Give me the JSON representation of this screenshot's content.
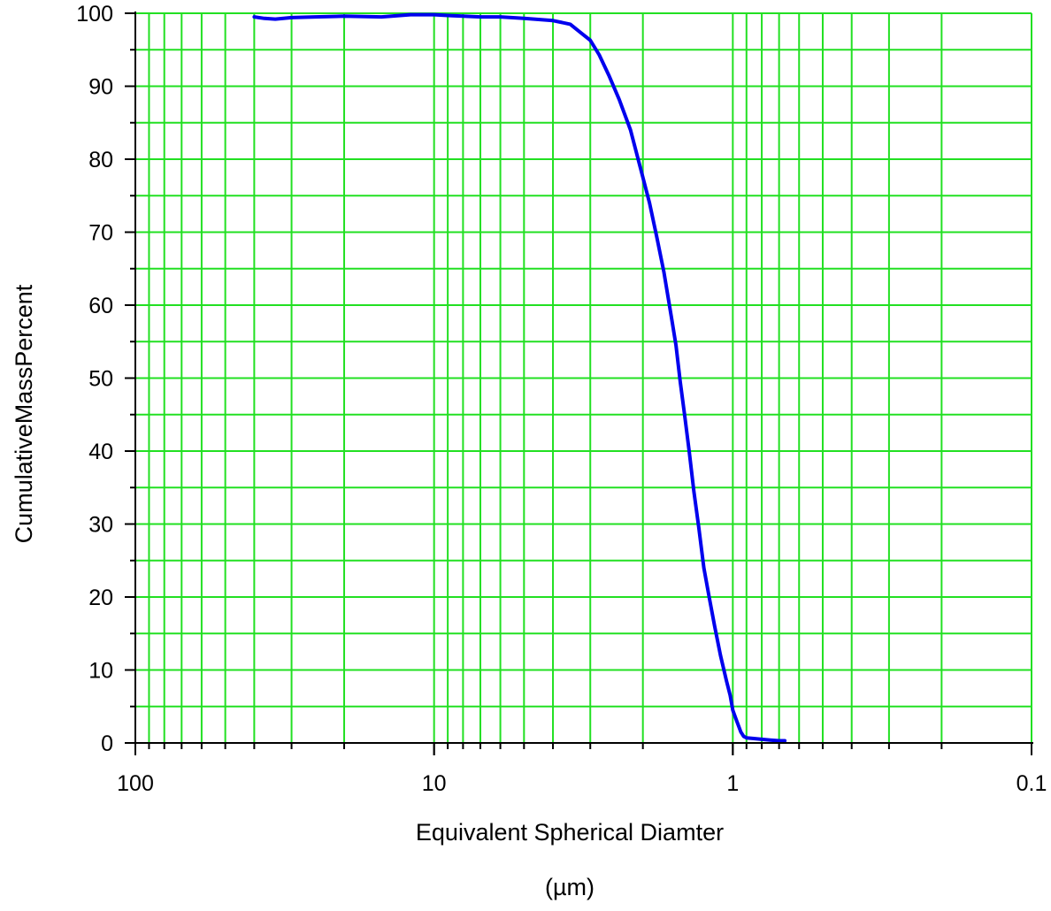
{
  "chart_data": {
    "type": "line",
    "xlabel": "Equivalent Spherical Diamter",
    "xlabel_unit": "(µm)",
    "ylabel": "CumulativeMassPercent",
    "x_scale": "log",
    "x_reversed": true,
    "xlim": [
      100,
      0.1
    ],
    "ylim": [
      0,
      100
    ],
    "grid": true,
    "x_tick_labels": [
      {
        "value": 100,
        "label": "100"
      },
      {
        "value": 10,
        "label": "10"
      },
      {
        "value": 1,
        "label": "1"
      },
      {
        "value": 0.1,
        "label": "0.1"
      }
    ],
    "y_tick_labels": [
      {
        "value": 0,
        "label": "0"
      },
      {
        "value": 10,
        "label": "10"
      },
      {
        "value": 20,
        "label": "20"
      },
      {
        "value": 30,
        "label": "30"
      },
      {
        "value": 40,
        "label": "40"
      },
      {
        "value": 50,
        "label": "50"
      },
      {
        "value": 60,
        "label": "60"
      },
      {
        "value": 70,
        "label": "70"
      },
      {
        "value": 80,
        "label": "80"
      },
      {
        "value": 90,
        "label": "90"
      },
      {
        "value": 100,
        "label": "100"
      }
    ],
    "x_gridlines": [
      90,
      80,
      70,
      60,
      50,
      40,
      30,
      20,
      10,
      9,
      8,
      7,
      6,
      5,
      4,
      3,
      2,
      1,
      0.9,
      0.8,
      0.7,
      0.6,
      0.5,
      0.4,
      0.3,
      0.2,
      0.1
    ],
    "y_gridlines": [
      5,
      10,
      15,
      20,
      25,
      30,
      35,
      40,
      45,
      50,
      55,
      60,
      65,
      70,
      75,
      80,
      85,
      90,
      95,
      100
    ],
    "series": [
      {
        "color": "#0000ee",
        "x": [
          40,
          37,
          34,
          30,
          25,
          20,
          15,
          12,
          10,
          9,
          8,
          7,
          6,
          5,
          4,
          3.5,
          3.2,
          3.0,
          2.8,
          2.6,
          2.4,
          2.2,
          2.0,
          1.9,
          1.8,
          1.7,
          1.6,
          1.55,
          1.5,
          1.45,
          1.4,
          1.35,
          1.3,
          1.25,
          1.2,
          1.15,
          1.1,
          1.05,
          1.02,
          1.0,
          0.97,
          0.94,
          0.92,
          0.9,
          0.85,
          0.8,
          0.75,
          0.7,
          0.67
        ],
        "y": [
          99.5,
          99.3,
          99.2,
          99.4,
          99.5,
          99.6,
          99.5,
          99.8,
          99.8,
          99.7,
          99.6,
          99.5,
          99.5,
          99.3,
          99.0,
          98.5,
          97.2,
          96.3,
          94.3,
          91.5,
          88.2,
          84.0,
          77.5,
          74.0,
          69.5,
          64.5,
          58.0,
          54.5,
          49.5,
          45.0,
          40.0,
          34.5,
          29.5,
          24.0,
          20.0,
          16.0,
          12.0,
          8.5,
          6.5,
          4.5,
          3.0,
          1.5,
          0.9,
          0.7,
          0.6,
          0.5,
          0.4,
          0.3,
          0.3
        ]
      }
    ]
  }
}
